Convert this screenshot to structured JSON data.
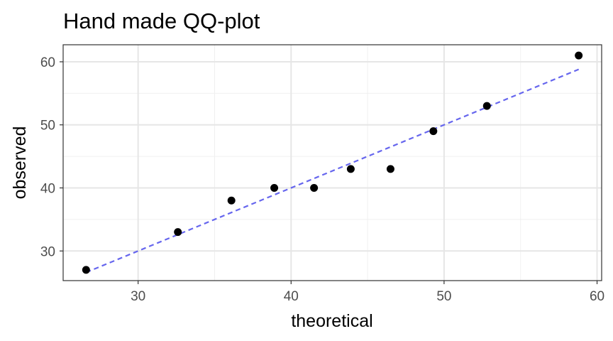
{
  "chart_data": {
    "type": "scatter",
    "title": "Hand made QQ-plot",
    "xlabel": "theoretical",
    "ylabel": "observed",
    "xlim": [
      25.1,
      60.3
    ],
    "ylim": [
      25.3,
      62.7
    ],
    "x_ticks": [
      30,
      40,
      50,
      60
    ],
    "y_ticks": [
      30,
      40,
      50,
      60
    ],
    "x_minor_ticks": [
      25,
      35,
      45,
      55
    ],
    "y_minor_ticks": [
      35,
      45,
      55
    ],
    "grid": true,
    "series": [
      {
        "x": [
          26.6,
          32.6,
          36.1,
          38.9,
          41.5,
          43.9,
          46.5,
          49.3,
          52.8,
          58.8
        ],
        "y": [
          27,
          33,
          38,
          40,
          40,
          43,
          43,
          49,
          53,
          61
        ],
        "color": "#000000"
      }
    ],
    "reference_line": {
      "x": [
        26.6,
        58.8
      ],
      "y": [
        26.6,
        58.8
      ],
      "style": "dashed",
      "color": "#6666ee"
    }
  }
}
